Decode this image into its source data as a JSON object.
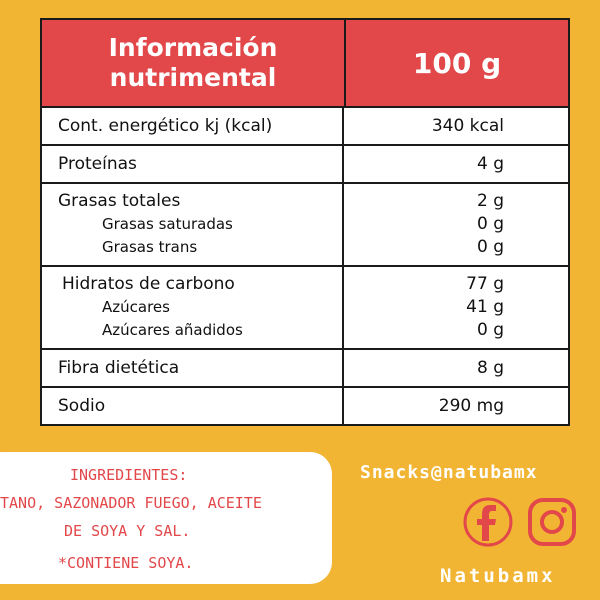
{
  "table": {
    "header": {
      "line1": "Información",
      "line2": "nutrimental",
      "amount": "100 g"
    },
    "energy": {
      "label": "Cont. energético kj (kcal)",
      "value": "340 kcal"
    },
    "protein": {
      "label": "Proteínas",
      "value": "4 g"
    },
    "fat": {
      "label": "Grasas totales",
      "value": "2 g",
      "saturated_label": "Grasas saturadas",
      "saturated_value": "0 g",
      "trans_label": "Grasas trans",
      "trans_value": "0 g"
    },
    "carbs": {
      "label": "Hidratos de carbono",
      "value": "77 g",
      "sugars_label": "Azúcares",
      "sugars_value": "41 g",
      "added_label": "Azúcares añadidos",
      "added_value": "0 g"
    },
    "fiber": {
      "label": "Fibra dietética",
      "value": "8 g"
    },
    "sodium": {
      "label": "Sodio",
      "value": "290 mg"
    }
  },
  "ingredients": {
    "title": "INGREDIENTES:",
    "line1": "TANO, SAZONADOR FUEGO, ACEITE",
    "line2": "DE SOYA Y SAL.",
    "note": "*CONTIENE SOYA."
  },
  "contact": {
    "email": "Snacks@natubamx",
    "brand": "Natubamx"
  },
  "icons": [
    "facebook-icon",
    "instagram-icon"
  ],
  "colors": {
    "background": "#f2b533",
    "accent": "#e2474a",
    "text": "#111111"
  }
}
